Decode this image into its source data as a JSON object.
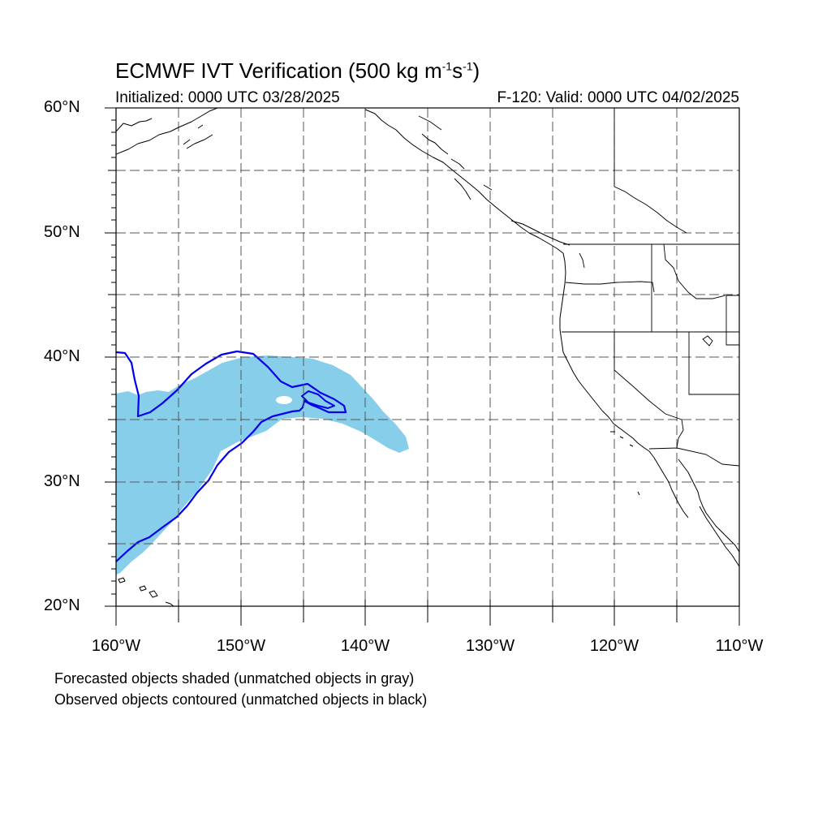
{
  "title": {
    "prefix": "ECMWF IVT Verification (500 kg m",
    "exp1": "-1",
    "mid": "s",
    "exp2": "-1",
    "suffix": ")"
  },
  "subtitle_left": "Initialized: 0000 UTC 03/28/2025",
  "subtitle_right": "F-120: Valid: 0000 UTC 04/02/2025",
  "lat_labels": [
    "60°N",
    "50°N",
    "40°N",
    "30°N",
    "20°N"
  ],
  "lon_labels": [
    "160°W",
    "150°W",
    "140°W",
    "130°W",
    "120°W",
    "110°W"
  ],
  "footnotes": [
    "Forecasted objects shaded (unmatched objects in gray)",
    "Observed objects contoured (unmatched objects in black)"
  ],
  "colors": {
    "forecast_fill": "#87ceeb",
    "observed_contour": "#0000ee",
    "coastline": "#000000",
    "grid": "#555555"
  }
}
